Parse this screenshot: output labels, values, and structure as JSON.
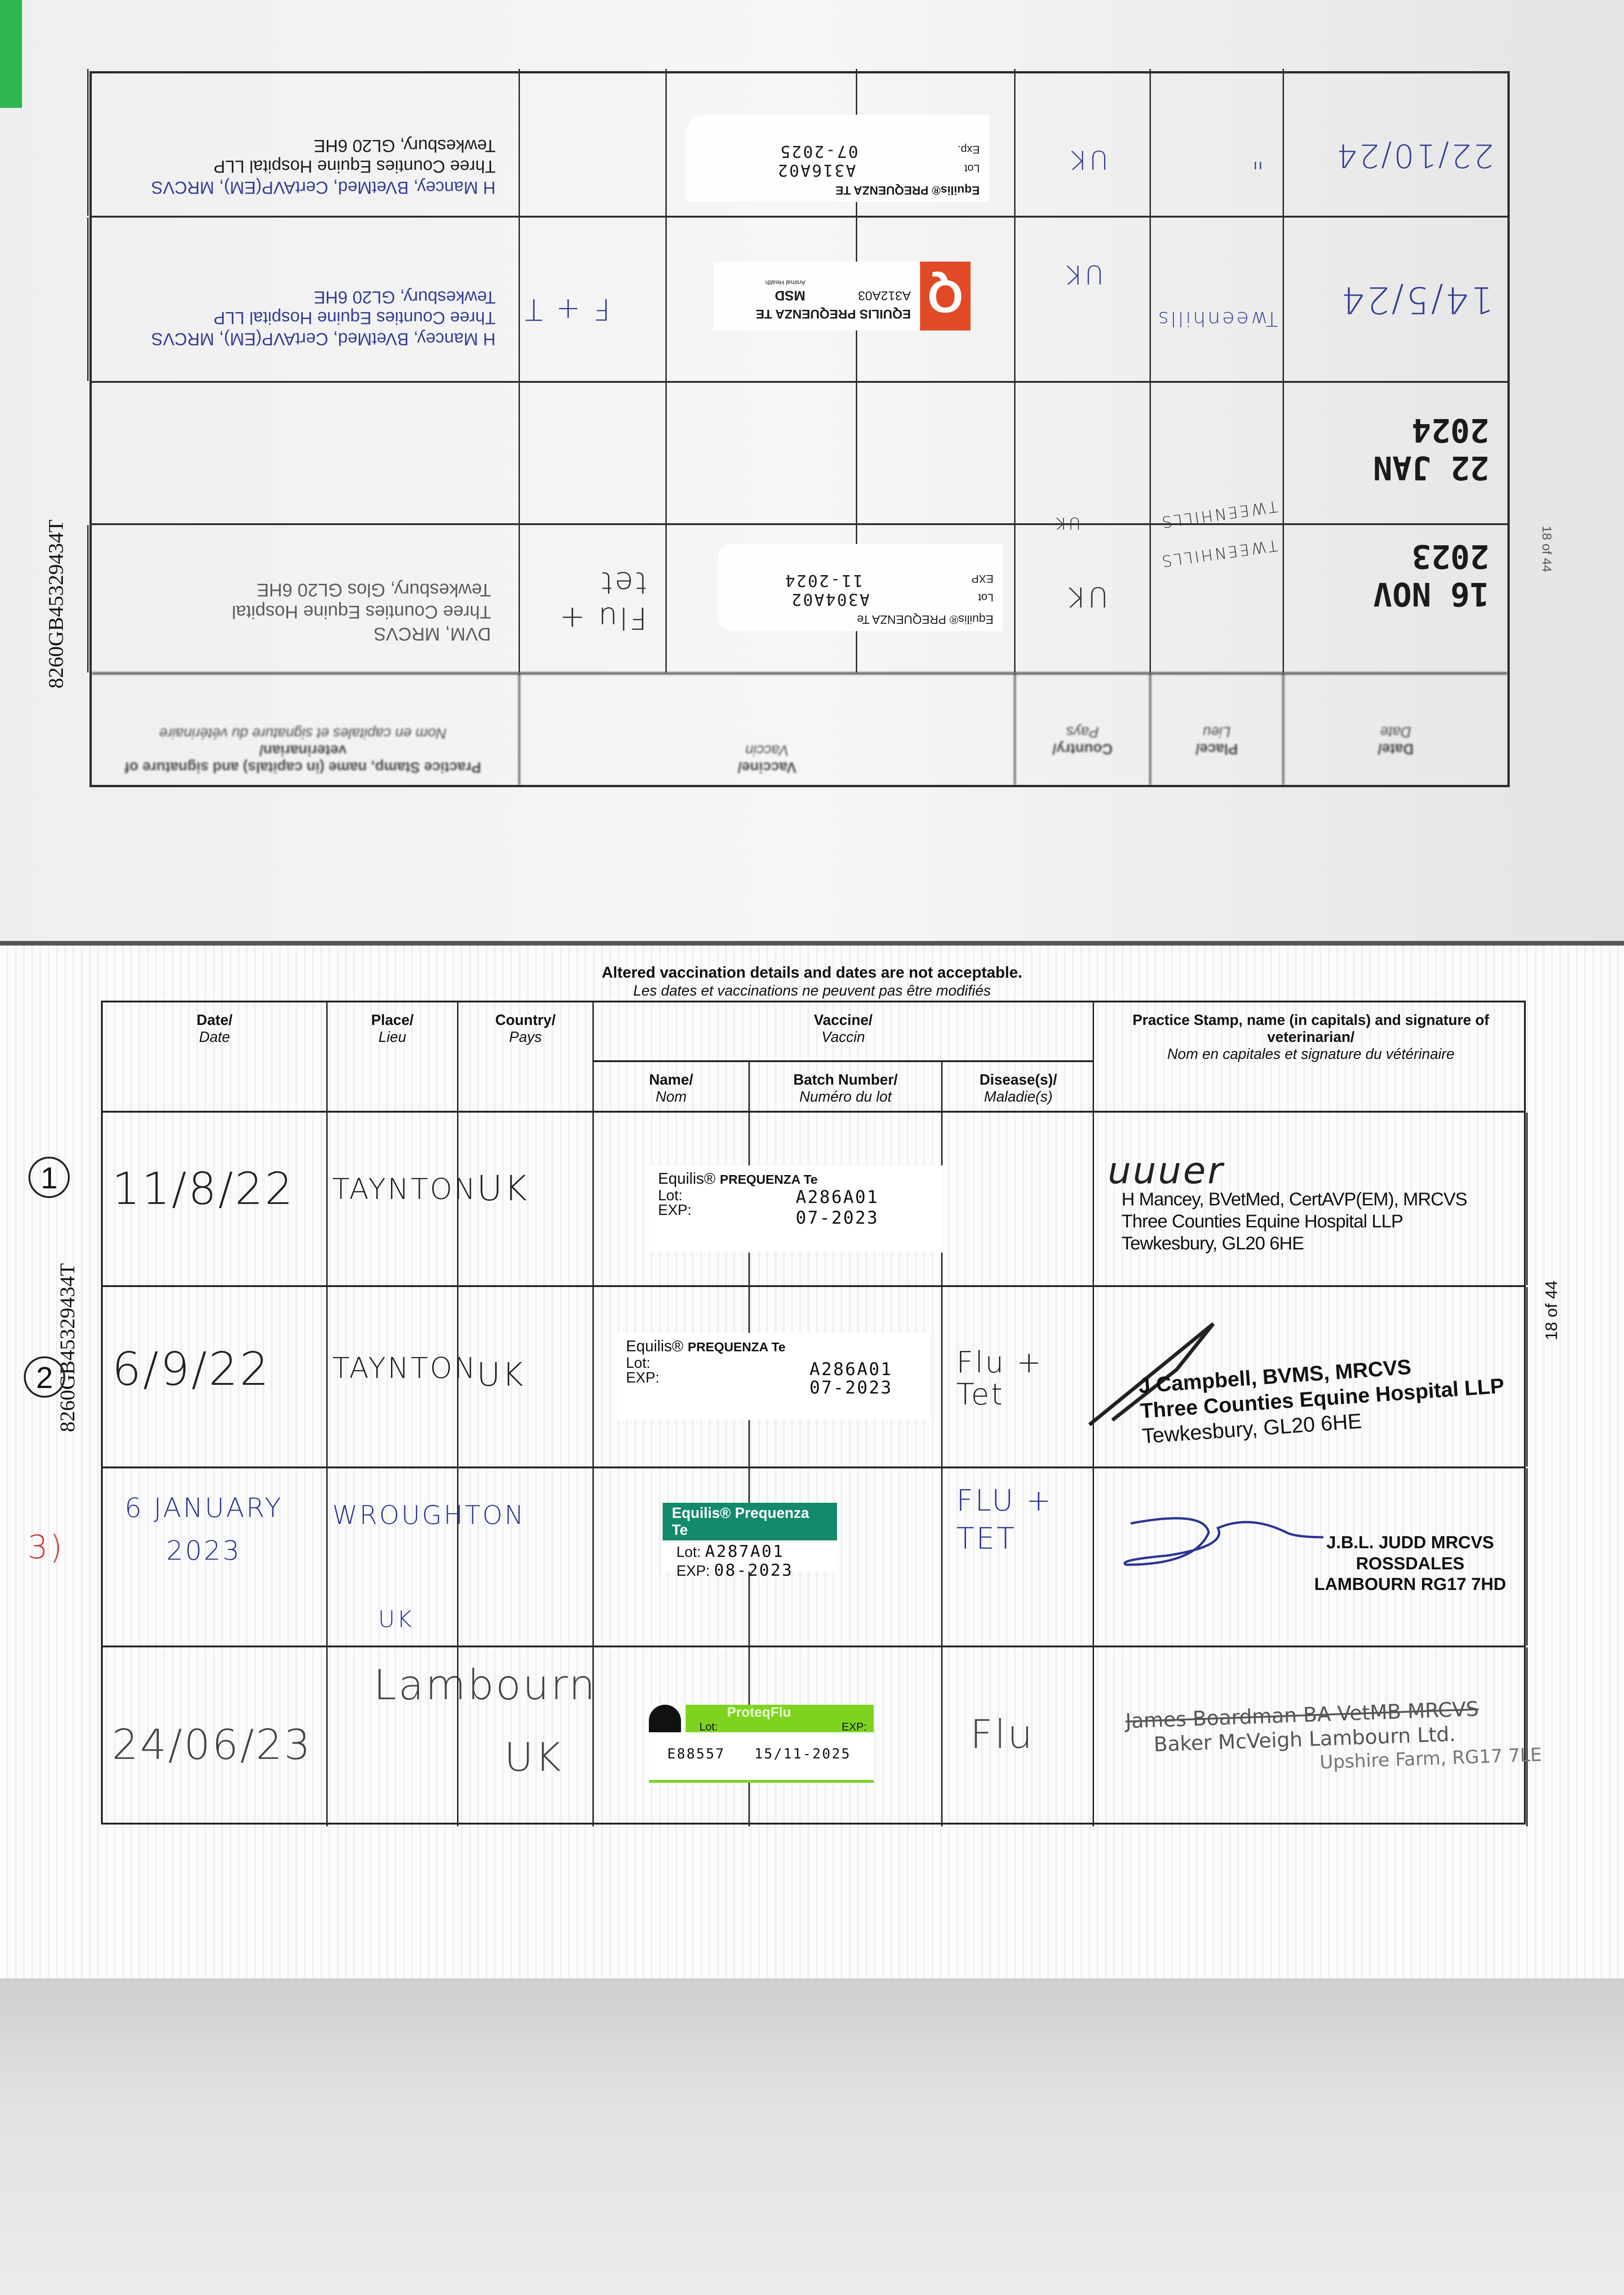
{
  "headers": {
    "notice_en": "Altered vaccination details and dates are not acceptable.",
    "notice_fr": "Les dates et vaccinations ne peuvent pas être modifiés",
    "date": "Date/",
    "date_fr": "Date",
    "place": "Place/",
    "place_fr": "Lieu",
    "country": "Country/",
    "country_fr": "Pays",
    "vaccine": "Vaccine/",
    "vaccine_fr": "Vaccin",
    "name": "Name/",
    "name_fr": "Nom",
    "batch": "Batch Number/",
    "batch_fr": "Numéro du lot",
    "disease": "Disease(s)/",
    "disease_fr": "Maladie(s)",
    "stamp": "Practice Stamp, name (in capitals) and signature of veterinarian/",
    "stamp_fr": "Nom en capitales et signature du vétérinaire"
  },
  "passport_id": "8260GB45329434T",
  "page_number": "18 of 44",
  "annotations": [
    "1",
    "2",
    "3)"
  ],
  "colors": {
    "tab": "#2eb84f",
    "ink_blue": "#2b3590",
    "equilis_green": "#138a6c",
    "proteqflu_green": "#7ed321",
    "msd_red": "#e2401c",
    "annotation_red": "#d23a3a"
  },
  "top_page": {
    "rows": [
      {
        "date": "16 NOV 2023",
        "place": "TWEENHILLS",
        "country": "UK",
        "label": {
          "brand": "Equilis® PREQUENZA Te",
          "lot_label": "Lot",
          "exp_label": "EXP",
          "lot": "A304A02",
          "exp": "11-2024"
        },
        "disease": "Flu + tet",
        "stamp": [
          "DVM, MRCVS",
          "Three Counties Equine Hospital",
          "Tewkesbury, Glos GL20 6HE"
        ]
      },
      {
        "date": "22 JAN 2024",
        "place": "TWEENHILLS",
        "country": "UK"
      },
      {
        "date": "14/5/24",
        "place": "Tweenhills",
        "country": "UK",
        "label": {
          "brand": "EQUILIS PREQUENZA TE",
          "lot": "A312A03",
          "maker": "MSD",
          "maker_sub": "Animal Health"
        },
        "disease": "F + T",
        "stamp": [
          "H Mancey, BVetMed, CertAVP(EM), MRCVS",
          "Three Counties Equine Hospital LLP",
          "Tewkesbury, GL20 6HE"
        ]
      },
      {
        "date": "22/10/24",
        "place": "\"",
        "country": "UK",
        "label": {
          "brand": "Equilis® PREQUENZA TE",
          "lot_label": "Lot",
          "exp_label": "Exp.",
          "lot": "A316A02",
          "exp": "07-2025"
        },
        "stamp": [
          "H Mancey, BVetMed, CertAVP(EM), MRCVS",
          "Three Counties Equine Hospital LLP",
          "Tewkesbury, GL20 6HE"
        ]
      }
    ]
  },
  "bottom_page": {
    "rows": [
      {
        "date": "11/8/22",
        "place": "TAYNTON",
        "country": "UK",
        "label": {
          "brand": "Equilis®",
          "product": "PREQUENZA Te",
          "lot_label": "Lot:",
          "exp_label": "EXP:",
          "lot": "A286A01",
          "exp": "07-2023"
        },
        "disease": "",
        "stamp": [
          "H Mancey, BVetMed, CertAVP(EM), MRCVS",
          "Three Counties Equine Hospital LLP",
          "Tewkesbury, GL20 6HE"
        ]
      },
      {
        "date": "6/9/22",
        "place": "TAYNTON",
        "country": "UK",
        "label": {
          "brand": "Equilis®",
          "product": "PREQUENZA Te",
          "lot_label": "Lot:",
          "exp_label": "EXP:",
          "lot": "A286A01",
          "exp": "07-2023"
        },
        "disease": "Flu + Tet",
        "stamp": [
          "J Campbell, BVMS, MRCVS",
          "Three Counties Equine Hospital LLP",
          "Tewkesbury, GL20 6HE"
        ]
      },
      {
        "date": "6 JANUARY 2023",
        "place": "WROUGHTON",
        "place2": "UK",
        "country": "",
        "label": {
          "brand": "Equilis®",
          "product": "Prequenza Te",
          "lot_label": "Lot:",
          "exp_label": "EXP:",
          "lot": "A287A01",
          "exp": "08-2023"
        },
        "disease": "FLU + TET",
        "stamp": [
          "J.B.L. JUDD MRCVS",
          "ROSSDALES",
          "LAMBOURN  RG17 7HD"
        ]
      },
      {
        "date": "24/06/23",
        "place": "Lambourn",
        "country": "UK",
        "label": {
          "brand": "ProteqFlu",
          "lot_label": "Lot:",
          "exp_label": "EXP:",
          "lot": "E88557",
          "exp": "15/11-2025"
        },
        "disease": "Flu",
        "stamp": [
          "James Boardman BA VetMB MRCVS",
          "Baker McVeigh Lambourn Ltd.",
          "Upshire Farm, RG17 7LE"
        ]
      }
    ]
  }
}
